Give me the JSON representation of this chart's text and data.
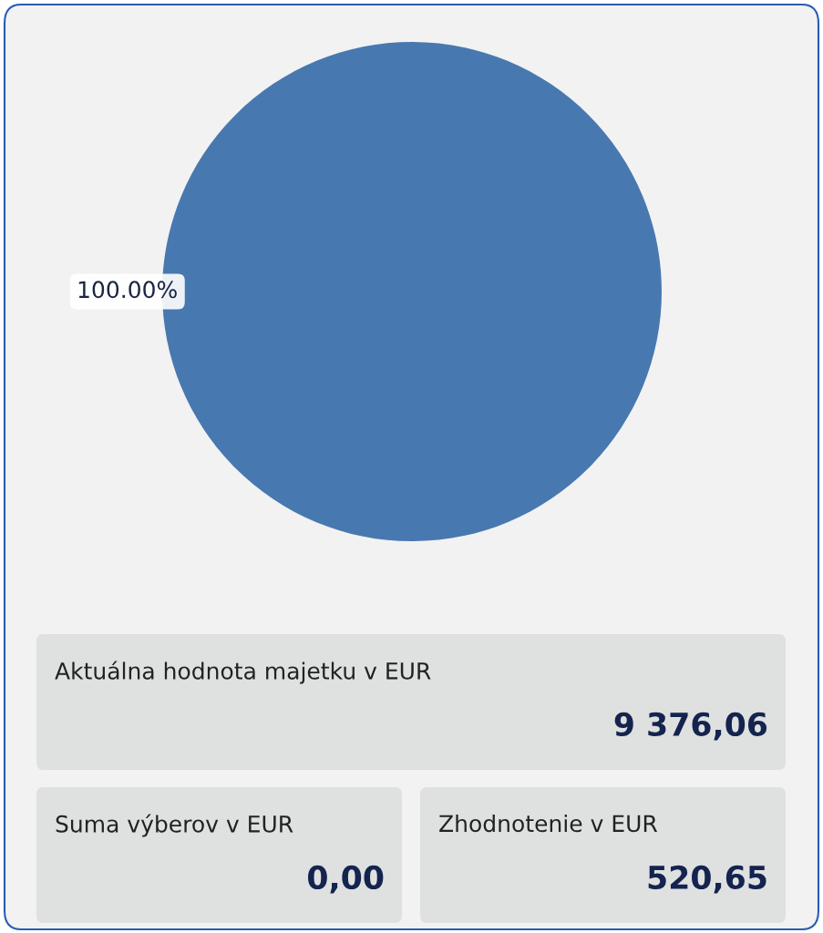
{
  "chart_data": [
    {
      "type": "pie",
      "categories": [
        null
      ],
      "values": [
        100
      ],
      "colors": [
        "#4878b0"
      ],
      "value_labels": [
        "100.00%"
      ],
      "legend": false
    },
    {
      "type": "other",
      "annotations": [
        "Aktuálna hodnota majetku v EUR",
        "9 376,06",
        "Suma výberov v EUR",
        "0,00",
        "Zhodnotenie v EUR",
        "520,65"
      ]
    }
  ]
}
